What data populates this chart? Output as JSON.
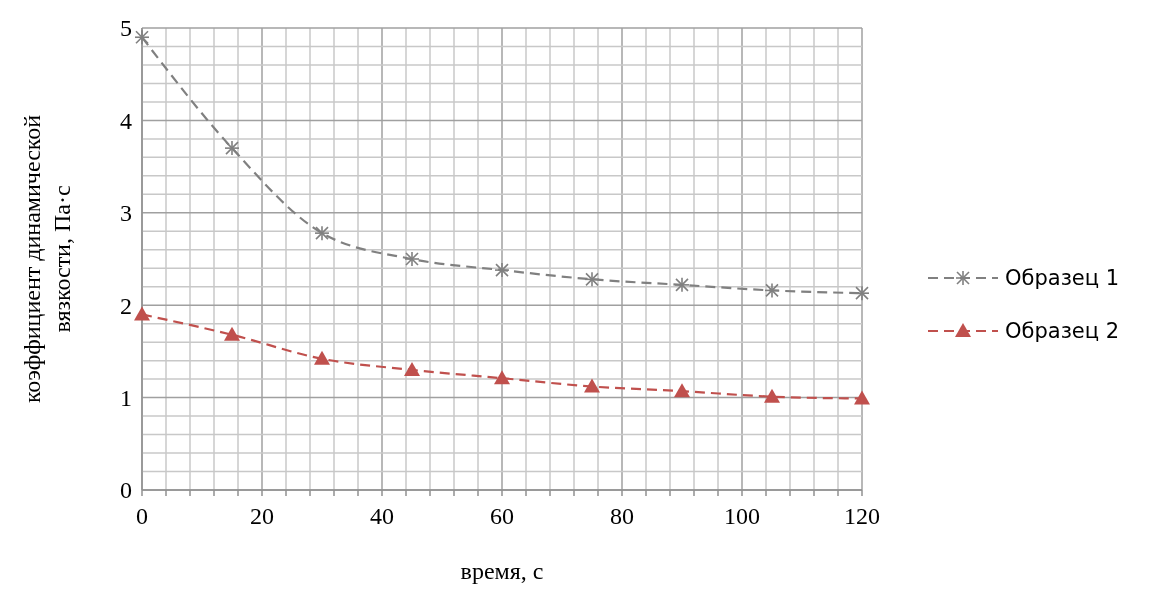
{
  "chart_data": {
    "type": "line",
    "xlabel": "время, с",
    "ylabel": "коэффициент динамической вязкости, Па·с",
    "x": [
      0,
      15,
      30,
      45,
      60,
      75,
      90,
      105,
      120
    ],
    "series": [
      {
        "name": "Образец 1",
        "color": "#808080",
        "marker": "cross",
        "line_style": "dashed",
        "values": [
          4.9,
          3.7,
          2.78,
          2.5,
          2.38,
          2.28,
          2.22,
          2.16,
          2.13
        ]
      },
      {
        "name": "Образец 2",
        "color": "#c0504d",
        "marker": "triangle",
        "line_style": "dashed",
        "values": [
          1.9,
          1.68,
          1.42,
          1.3,
          1.21,
          1.12,
          1.07,
          1.01,
          0.99
        ]
      }
    ],
    "xlim": [
      0,
      120
    ],
    "ylim": [
      0,
      5
    ],
    "xticks": [
      0,
      {
        "value": 4,
        "label": null
      },
      {
        "value": 8,
        "label": null
      },
      {
        "value": 12,
        "label": null
      },
      {
        "value": 16,
        "label": null
      },
      20,
      {
        "value": 24,
        "label": null
      },
      {
        "value": 28,
        "label": null
      },
      {
        "value": 32,
        "label": null
      },
      {
        "value": 36,
        "label": null
      },
      40,
      {
        "value": 44,
        "label": null
      },
      {
        "value": 48,
        "label": null
      },
      {
        "value": 52,
        "label": null
      },
      {
        "value": 56,
        "label": null
      },
      60,
      {
        "value": 64,
        "label": null
      },
      {
        "value": 68,
        "label": null
      },
      {
        "value": 72,
        "label": null
      },
      {
        "value": 76,
        "label": null
      },
      80,
      {
        "value": 84,
        "label": null
      },
      {
        "value": 88,
        "label": null
      },
      {
        "value": 92,
        "label": null
      },
      {
        "value": 96,
        "label": null
      },
      100,
      {
        "value": 104,
        "label": null
      },
      {
        "value": 108,
        "label": null
      },
      {
        "value": 112,
        "label": null
      },
      {
        "value": 116,
        "label": null
      },
      120
    ],
    "yticks": [
      0,
      {
        "value": 0.2,
        "label": null
      },
      {
        "value": 0.4,
        "label": null
      },
      {
        "value": 0.6,
        "label": null
      },
      {
        "value": 0.8,
        "label": null
      },
      1,
      {
        "value": 1.2,
        "label": null
      },
      {
        "value": 1.4,
        "label": null
      },
      {
        "value": 1.6,
        "label": null
      },
      {
        "value": 1.8,
        "label": null
      },
      2,
      {
        "value": 2.2,
        "label": null
      },
      {
        "value": 2.4,
        "label": null
      },
      {
        "value": 2.6,
        "label": null
      },
      {
        "value": 2.8,
        "label": null
      },
      3,
      {
        "value": 3.2,
        "label": null
      },
      {
        "value": 3.4,
        "label": null
      },
      {
        "value": 3.6,
        "label": null
      },
      {
        "value": 3.8,
        "label": null
      },
      4,
      {
        "value": 4.2,
        "label": null
      },
      {
        "value": 4.4,
        "label": null
      },
      {
        "value": 4.6,
        "label": null
      },
      {
        "value": 4.8,
        "label": null
      },
      5
    ],
    "grid": true,
    "legend": "right"
  }
}
